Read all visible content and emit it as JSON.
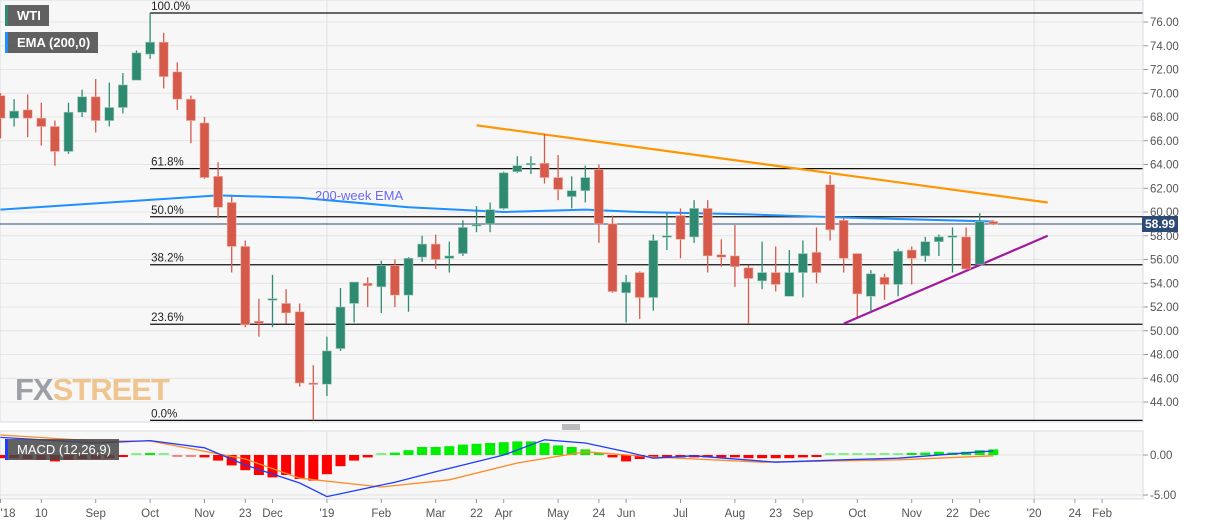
{
  "chart_data": {
    "type": "candlestick",
    "symbol": "WTI",
    "indicator_labels": {
      "ema": "EMA (200,0)",
      "macd": "MACD (12,26,9)"
    },
    "ema_annotation": "200-week EMA",
    "last_price": "58.99",
    "watermark": {
      "part1": "FX",
      "part2": "STREET"
    },
    "y_ticks": [
      "76.00",
      "74.00",
      "72.00",
      "70.00",
      "68.00",
      "66.00",
      "64.00",
      "62.00",
      "60.00",
      "58.00",
      "56.00",
      "54.00",
      "52.00",
      "50.00",
      "48.00",
      "46.00",
      "44.00"
    ],
    "ylim": [
      42.2,
      77.6
    ],
    "macd_ticks": [
      "0.00",
      "-5.00"
    ],
    "x_ticks": [
      {
        "label": "'18",
        "date": "2018-07-16"
      },
      {
        "label": "10",
        "date": "2018-08-06"
      },
      {
        "label": "Sep",
        "date": "2018-09-03"
      },
      {
        "label": "Oct",
        "date": "2018-10-01"
      },
      {
        "label": "Nov",
        "date": "2018-10-29"
      },
      {
        "label": "23",
        "date": "2018-11-19"
      },
      {
        "label": "Dec",
        "date": "2018-12-03"
      },
      {
        "label": "'19",
        "date": "2018-12-31"
      },
      {
        "label": "Feb",
        "date": "2019-01-28"
      },
      {
        "label": "Mar",
        "date": "2019-02-25"
      },
      {
        "label": "22",
        "date": "2019-03-18"
      },
      {
        "label": "Apr",
        "date": "2019-04-01"
      },
      {
        "label": "May",
        "date": "2019-04-29"
      },
      {
        "label": "24",
        "date": "2019-05-20"
      },
      {
        "label": "Jun",
        "date": "2019-06-03"
      },
      {
        "label": "Jul",
        "date": "2019-07-01"
      },
      {
        "label": "Aug",
        "date": "2019-07-29"
      },
      {
        "label": "23",
        "date": "2019-08-19"
      },
      {
        "label": "Sep",
        "date": "2019-09-02"
      },
      {
        "label": "Oct",
        "date": "2019-09-30"
      },
      {
        "label": "Nov",
        "date": "2019-10-28"
      },
      {
        "label": "22",
        "date": "2019-11-18"
      },
      {
        "label": "Dec",
        "date": "2019-12-02"
      },
      {
        "label": "'20",
        "date": "2019-12-30"
      },
      {
        "label": "24",
        "date": "2020-01-20"
      },
      {
        "label": "Feb",
        "date": "2020-02-03"
      }
    ],
    "fibonacci": {
      "high": 76.76,
      "low": 42.45,
      "start_date": "2018-10-01",
      "levels": [
        {
          "label": "100.0%",
          "price": 76.76
        },
        {
          "label": "61.8%",
          "price": 63.65
        },
        {
          "label": "50.0%",
          "price": 59.6
        },
        {
          "label": "38.2%",
          "price": 55.56
        },
        {
          "label": "23.6%",
          "price": 50.55
        },
        {
          "label": "0.0%",
          "price": 42.45
        }
      ]
    },
    "trendlines": [
      {
        "name": "resistance",
        "color": "#ff9500",
        "points": [
          [
            "2019-03-18",
            67.3
          ],
          [
            "2020-01-06",
            60.8
          ]
        ]
      },
      {
        "name": "support",
        "color": "#a0189e",
        "points": [
          [
            "2019-09-23",
            50.6
          ],
          [
            "2020-01-06",
            58.0
          ]
        ]
      }
    ],
    "ema200": [
      [
        "2018-07-16",
        60.2
      ],
      [
        "2018-11-05",
        61.4
      ],
      [
        "2018-12-17",
        61.2
      ],
      [
        "2019-02-11",
        60.4
      ],
      [
        "2019-04-01",
        60.0
      ],
      [
        "2019-05-13",
        60.2
      ],
      [
        "2019-06-10",
        60.0
      ],
      [
        "2019-08-05",
        59.8
      ],
      [
        "2019-09-30",
        59.5
      ],
      [
        "2019-12-09",
        59.2
      ]
    ],
    "macd_line": [
      [
        "2018-07-16",
        2.2
      ],
      [
        "2018-09-03",
        1.5
      ],
      [
        "2018-10-01",
        1.8
      ],
      [
        "2018-10-29",
        0.9
      ],
      [
        "2018-11-19",
        -1.25
      ],
      [
        "2018-12-17",
        -3.5
      ],
      [
        "2018-12-31",
        -5.2
      ],
      [
        "2019-02-04",
        -3.4
      ],
      [
        "2019-02-25",
        -2.1
      ],
      [
        "2019-04-01",
        0.0
      ],
      [
        "2019-04-22",
        1.9
      ],
      [
        "2019-05-13",
        1.5
      ],
      [
        "2019-06-03",
        0.4
      ],
      [
        "2019-06-17",
        -0.4
      ],
      [
        "2019-07-08",
        -0.1
      ],
      [
        "2019-08-19",
        -0.9
      ],
      [
        "2019-09-23",
        -0.6
      ],
      [
        "2019-10-21",
        -0.4
      ],
      [
        "2019-12-02",
        0.4
      ],
      [
        "2019-12-09",
        0.5
      ]
    ],
    "signal_line": [
      [
        "2018-07-16",
        2.5
      ],
      [
        "2018-09-03",
        1.75
      ],
      [
        "2018-10-01",
        1.75
      ],
      [
        "2018-11-19",
        -0.5
      ],
      [
        "2018-12-17",
        -2.9
      ],
      [
        "2019-01-28",
        -4.0
      ],
      [
        "2019-03-04",
        -3.1
      ],
      [
        "2019-04-08",
        -1.0
      ],
      [
        "2019-05-13",
        0.4
      ],
      [
        "2019-06-17",
        -0.25
      ],
      [
        "2019-08-12",
        -0.9
      ],
      [
        "2019-10-21",
        -0.6
      ],
      [
        "2019-12-09",
        -0.1
      ]
    ],
    "colors": {
      "up": "#2e8b72",
      "down": "#d65a4a",
      "ema": "#1e90ff",
      "macd": "#1f3cff",
      "signal": "#ff8a2a",
      "hist_up": "#00ee00",
      "hist_down": "#ff0000",
      "price_line": "#2c4a75"
    },
    "candles": [
      {
        "date": "2018-07-16",
        "o": 69.8,
        "h": 70.0,
        "l": 66.2,
        "c": 67.9,
        "hist": -0.4
      },
      {
        "date": "2018-07-23",
        "o": 67.9,
        "h": 69.5,
        "l": 67.2,
        "c": 68.5,
        "hist": -0.4
      },
      {
        "date": "2018-07-30",
        "o": 68.6,
        "h": 69.9,
        "l": 66.3,
        "c": 67.9,
        "hist": -0.5
      },
      {
        "date": "2018-08-06",
        "o": 67.9,
        "h": 69.2,
        "l": 65.6,
        "c": 67.2,
        "hist": -0.6
      },
      {
        "date": "2018-08-13",
        "o": 67.2,
        "h": 67.7,
        "l": 63.9,
        "c": 65.1,
        "hist": -0.8
      },
      {
        "date": "2018-08-20",
        "o": 65.1,
        "h": 69.2,
        "l": 64.9,
        "c": 68.4,
        "hist": -0.6
      },
      {
        "date": "2018-08-27",
        "o": 68.4,
        "h": 70.3,
        "l": 68.0,
        "c": 69.7,
        "hist": -0.5
      },
      {
        "date": "2018-09-03",
        "o": 69.7,
        "h": 71.2,
        "l": 66.7,
        "c": 67.7,
        "hist": -0.5
      },
      {
        "date": "2018-09-10",
        "o": 67.7,
        "h": 70.9,
        "l": 67.2,
        "c": 68.8,
        "hist": -0.4
      },
      {
        "date": "2018-09-17",
        "o": 68.8,
        "h": 71.7,
        "l": 68.3,
        "c": 70.7,
        "hist": -0.2
      },
      {
        "date": "2018-09-24",
        "o": 71.1,
        "h": 73.6,
        "l": 71.1,
        "c": 73.4,
        "hist": 0.1
      },
      {
        "date": "2018-10-01",
        "o": 73.3,
        "h": 76.76,
        "l": 72.9,
        "c": 74.3,
        "hist": 0.2
      },
      {
        "date": "2018-10-08",
        "o": 74.3,
        "h": 75.1,
        "l": 70.4,
        "c": 71.4,
        "hist": 0.1
      },
      {
        "date": "2018-10-15",
        "o": 71.8,
        "h": 72.6,
        "l": 68.6,
        "c": 69.5,
        "hist": -0.1
      },
      {
        "date": "2018-10-22",
        "o": 69.5,
        "h": 69.8,
        "l": 65.8,
        "c": 67.7,
        "hist": -0.1
      },
      {
        "date": "2018-10-29",
        "o": 67.5,
        "h": 68.0,
        "l": 62.8,
        "c": 62.9,
        "hist": -0.3
      },
      {
        "date": "2018-11-05",
        "o": 63.0,
        "h": 64.2,
        "l": 59.5,
        "c": 60.4,
        "hist": -0.7
      },
      {
        "date": "2018-11-12",
        "o": 60.8,
        "h": 61.3,
        "l": 54.9,
        "c": 57.1,
        "hist": -1.3
      },
      {
        "date": "2018-11-19",
        "o": 57.1,
        "h": 57.6,
        "l": 50.3,
        "c": 50.5,
        "hist": -1.9
      },
      {
        "date": "2018-11-26",
        "o": 50.8,
        "h": 52.7,
        "l": 49.5,
        "c": 50.6,
        "hist": -2.5
      },
      {
        "date": "2018-12-03",
        "o": 52.6,
        "h": 54.7,
        "l": 50.3,
        "c": 52.7,
        "hist": -2.8
      },
      {
        "date": "2018-12-10",
        "o": 52.3,
        "h": 53.5,
        "l": 50.6,
        "c": 51.5,
        "hist": -2.5
      },
      {
        "date": "2018-12-17",
        "o": 51.6,
        "h": 52.3,
        "l": 45.3,
        "c": 45.6,
        "hist": -3.0
      },
      {
        "date": "2018-12-24",
        "o": 45.6,
        "h": 47.1,
        "l": 42.45,
        "c": 45.5,
        "hist": -3.2
      },
      {
        "date": "2018-12-31",
        "o": 45.5,
        "h": 49.5,
        "l": 44.5,
        "c": 48.3,
        "hist": -2.4
      },
      {
        "date": "2019-01-07",
        "o": 48.5,
        "h": 53.6,
        "l": 48.3,
        "c": 52.0,
        "hist": -1.4
      },
      {
        "date": "2019-01-14",
        "o": 52.3,
        "h": 54.1,
        "l": 50.7,
        "c": 54.1,
        "hist": -0.7
      },
      {
        "date": "2019-01-21",
        "o": 54.0,
        "h": 54.5,
        "l": 52.0,
        "c": 53.8,
        "hist": -0.3
      },
      {
        "date": "2019-01-28",
        "o": 53.7,
        "h": 55.9,
        "l": 51.5,
        "c": 55.5,
        "hist": 0.1
      },
      {
        "date": "2019-02-04",
        "o": 55.5,
        "h": 56.0,
        "l": 52.0,
        "c": 53.0,
        "hist": 0.3
      },
      {
        "date": "2019-02-11",
        "o": 53.0,
        "h": 56.2,
        "l": 51.6,
        "c": 56.1,
        "hist": 0.6
      },
      {
        "date": "2019-02-18",
        "o": 56.2,
        "h": 58.0,
        "l": 55.8,
        "c": 57.3,
        "hist": 1.0
      },
      {
        "date": "2019-02-25",
        "o": 57.3,
        "h": 58.1,
        "l": 55.2,
        "c": 56.0,
        "hist": 1.0
      },
      {
        "date": "2019-03-04",
        "o": 56.1,
        "h": 57.5,
        "l": 54.9,
        "c": 56.3,
        "hist": 1.1
      },
      {
        "date": "2019-03-11",
        "o": 56.5,
        "h": 59.3,
        "l": 56.3,
        "c": 58.7,
        "hist": 1.3
      },
      {
        "date": "2019-03-18",
        "o": 58.9,
        "h": 60.5,
        "l": 58.3,
        "c": 58.95,
        "hist": 1.4
      },
      {
        "date": "2019-03-25",
        "o": 59.0,
        "h": 60.8,
        "l": 58.3,
        "c": 60.2,
        "hist": 1.5
      },
      {
        "date": "2019-04-01",
        "o": 60.3,
        "h": 63.4,
        "l": 60.2,
        "c": 63.3,
        "hist": 1.6
      },
      {
        "date": "2019-04-08",
        "o": 63.4,
        "h": 64.7,
        "l": 63.3,
        "c": 63.9,
        "hist": 1.7
      },
      {
        "date": "2019-04-15",
        "o": 64.0,
        "h": 64.7,
        "l": 63.2,
        "c": 64.1,
        "hist": 1.7
      },
      {
        "date": "2019-04-22",
        "o": 64.1,
        "h": 66.6,
        "l": 62.4,
        "c": 62.9,
        "hist": 1.5
      },
      {
        "date": "2019-04-29",
        "o": 62.9,
        "h": 64.8,
        "l": 61.0,
        "c": 61.9,
        "hist": 1.2
      },
      {
        "date": "2019-05-06",
        "o": 61.3,
        "h": 63.0,
        "l": 60.3,
        "c": 61.8,
        "hist": 1.0
      },
      {
        "date": "2019-05-13",
        "o": 61.8,
        "h": 63.9,
        "l": 60.8,
        "c": 62.9,
        "hist": 0.7
      },
      {
        "date": "2019-05-20",
        "o": 63.6,
        "h": 64.0,
        "l": 57.4,
        "c": 59.0,
        "hist": 0.3
      },
      {
        "date": "2019-05-27",
        "o": 59.0,
        "h": 59.7,
        "l": 53.2,
        "c": 53.3,
        "hist": -0.3
      },
      {
        "date": "2019-06-03",
        "o": 53.2,
        "h": 54.7,
        "l": 50.7,
        "c": 54.1,
        "hist": -0.8
      },
      {
        "date": "2019-06-10",
        "o": 54.9,
        "h": 55.0,
        "l": 51.0,
        "c": 52.8,
        "hist": -0.5
      },
      {
        "date": "2019-06-17",
        "o": 52.8,
        "h": 58.1,
        "l": 51.7,
        "c": 57.6,
        "hist": -0.3
      },
      {
        "date": "2019-06-24",
        "o": 57.9,
        "h": 59.9,
        "l": 56.8,
        "c": 58.0,
        "hist": -0.3
      },
      {
        "date": "2019-07-01",
        "o": 59.7,
        "h": 60.3,
        "l": 56.1,
        "c": 57.7,
        "hist": -0.3
      },
      {
        "date": "2019-07-08",
        "o": 57.9,
        "h": 61.0,
        "l": 57.4,
        "c": 60.3,
        "hist": -0.3
      },
      {
        "date": "2019-07-15",
        "o": 60.3,
        "h": 61.0,
        "l": 54.9,
        "c": 56.3,
        "hist": -0.3
      },
      {
        "date": "2019-07-22",
        "o": 56.4,
        "h": 57.7,
        "l": 55.4,
        "c": 56.2,
        "hist": -0.3
      },
      {
        "date": "2019-07-29",
        "o": 56.3,
        "h": 58.9,
        "l": 53.7,
        "c": 55.4,
        "hist": -0.3
      },
      {
        "date": "2019-08-05",
        "o": 55.3,
        "h": 55.5,
        "l": 50.6,
        "c": 54.4,
        "hist": -0.4
      },
      {
        "date": "2019-08-12",
        "o": 54.2,
        "h": 57.5,
        "l": 53.5,
        "c": 54.9,
        "hist": -0.4
      },
      {
        "date": "2019-08-19",
        "o": 54.9,
        "h": 57.1,
        "l": 53.3,
        "c": 53.9,
        "hist": -0.4
      },
      {
        "date": "2019-08-26",
        "o": 52.9,
        "h": 56.8,
        "l": 52.9,
        "c": 54.9,
        "hist": -0.4
      },
      {
        "date": "2019-09-02",
        "o": 54.9,
        "h": 57.6,
        "l": 52.8,
        "c": 56.5,
        "hist": -0.3
      },
      {
        "date": "2019-09-09",
        "o": 56.6,
        "h": 58.7,
        "l": 54.0,
        "c": 54.9,
        "hist": -0.2
      },
      {
        "date": "2019-09-16",
        "o": 62.3,
        "h": 63.1,
        "l": 57.6,
        "c": 58.5,
        "hist": 0.1
      },
      {
        "date": "2019-09-23",
        "o": 59.3,
        "h": 59.5,
        "l": 54.9,
        "c": 56.1,
        "hist": 0.1
      },
      {
        "date": "2019-09-30",
        "o": 56.5,
        "h": 56.5,
        "l": 51.2,
        "c": 53.1,
        "hist": 0.1
      },
      {
        "date": "2019-10-07",
        "o": 52.9,
        "h": 55.1,
        "l": 51.6,
        "c": 54.8,
        "hist": 0.05
      },
      {
        "date": "2019-10-14",
        "o": 54.5,
        "h": 54.8,
        "l": 52.6,
        "c": 53.9,
        "hist": 0.05
      },
      {
        "date": "2019-10-21",
        "o": 53.9,
        "h": 56.9,
        "l": 52.9,
        "c": 56.7,
        "hist": 0.1
      },
      {
        "date": "2019-10-28",
        "o": 56.8,
        "h": 57.1,
        "l": 53.9,
        "c": 56.1,
        "hist": 0.2
      },
      {
        "date": "2019-11-04",
        "o": 56.3,
        "h": 57.9,
        "l": 55.8,
        "c": 57.5,
        "hist": 0.3
      },
      {
        "date": "2019-11-11",
        "o": 57.5,
        "h": 58.1,
        "l": 56.3,
        "c": 57.9,
        "hist": 0.4
      },
      {
        "date": "2019-11-18",
        "o": 57.9,
        "h": 58.7,
        "l": 54.9,
        "c": 58.0,
        "hist": 0.3
      },
      {
        "date": "2019-11-25",
        "o": 57.9,
        "h": 58.7,
        "l": 55.1,
        "c": 55.2,
        "hist": 0.4
      },
      {
        "date": "2019-12-02",
        "o": 55.6,
        "h": 59.9,
        "l": 55.6,
        "c": 59.2,
        "hist": 0.6
      },
      {
        "date": "2019-12-09",
        "o": 59.2,
        "h": 59.3,
        "l": 58.9,
        "c": 58.99,
        "hist": 0.7
      }
    ]
  }
}
